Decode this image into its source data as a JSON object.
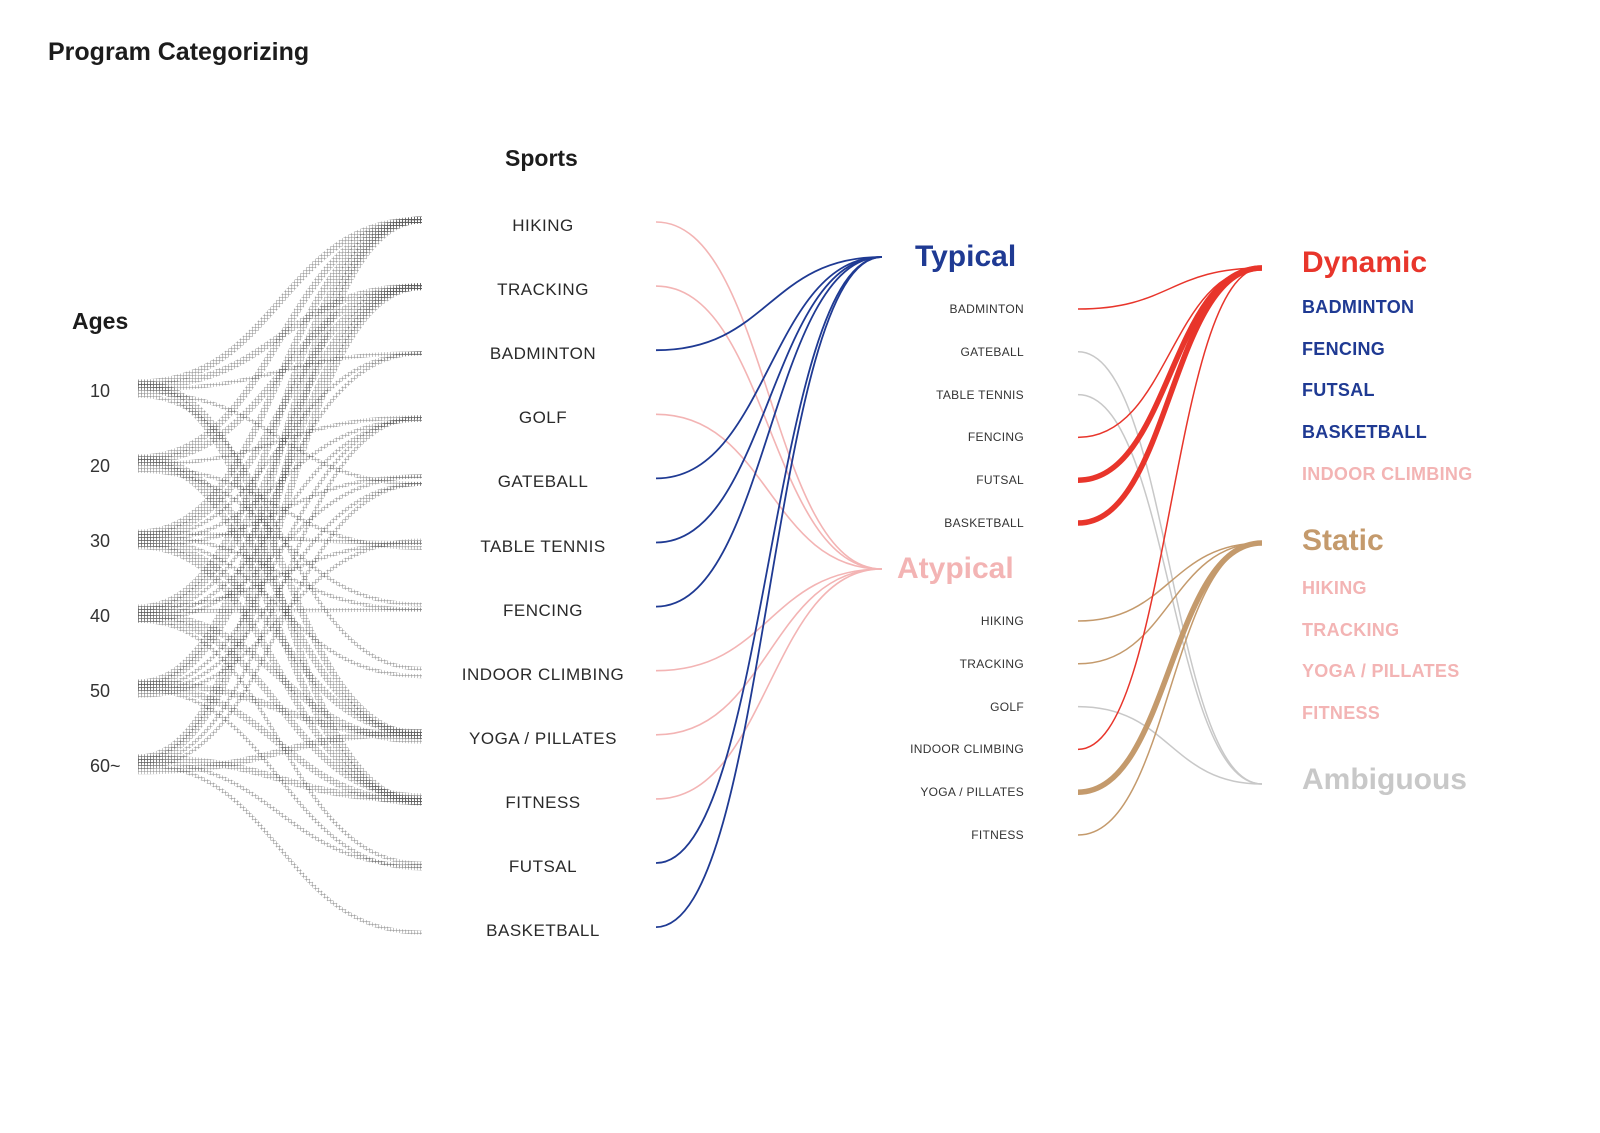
{
  "title": "Program Categorizing",
  "ages": {
    "heading": "Ages",
    "labels": [
      "10",
      "20",
      "30",
      "40",
      "50",
      "60~"
    ]
  },
  "sports": {
    "heading": "Sports",
    "items": [
      "HIKING",
      "TRACKING",
      "BADMINTON",
      "GOLF",
      "GATEBALL",
      "TABLE TENNIS",
      "FENCING",
      "INDOOR CLIMBING",
      "YOGA / PILLATES",
      "FITNESS",
      "FUTSAL",
      "BASKETBALL"
    ]
  },
  "typicality": {
    "typical": {
      "label": "Typical",
      "color": "#1f3a93",
      "items": [
        "BADMINTON",
        "GATEBALL",
        "TABLE TENNIS",
        "FENCING",
        "FUTSAL",
        "BASKETBALL"
      ]
    },
    "atypical": {
      "label": "Atypical",
      "color": "#f3b4b4",
      "items": [
        "HIKING",
        "TRACKING",
        "GOLF",
        "INDOOR CLIMBING",
        "YOGA / PILLATES",
        "FITNESS"
      ]
    }
  },
  "activity": {
    "dynamic": {
      "label": "Dynamic",
      "color": "#e8352b",
      "items": [
        {
          "label": "BADMINTON",
          "group": "typical"
        },
        {
          "label": "FENCING",
          "group": "typical"
        },
        {
          "label": "FUTSAL",
          "group": "typical"
        },
        {
          "label": "BASKETBALL",
          "group": "typical"
        },
        {
          "label": "INDOOR CLIMBING",
          "group": "atypical"
        }
      ]
    },
    "static": {
      "label": "Static",
      "color": "#c49a6c",
      "items": [
        {
          "label": "HIKING",
          "group": "atypical"
        },
        {
          "label": "TRACKING",
          "group": "atypical"
        },
        {
          "label": "YOGA / PILLATES",
          "group": "atypical"
        },
        {
          "label": "FITNESS",
          "group": "atypical"
        }
      ]
    },
    "ambiguous": {
      "label": "Ambiguous",
      "color": "#c8c8c8"
    }
  },
  "flows": {
    "sport_to_type": [
      {
        "from": "HIKING",
        "to": "atypical"
      },
      {
        "from": "TRACKING",
        "to": "atypical"
      },
      {
        "from": "BADMINTON",
        "to": "typical"
      },
      {
        "from": "GOLF",
        "to": "atypical"
      },
      {
        "from": "GATEBALL",
        "to": "typical"
      },
      {
        "from": "TABLE TENNIS",
        "to": "typical"
      },
      {
        "from": "FENCING",
        "to": "typical"
      },
      {
        "from": "INDOOR CLIMBING",
        "to": "atypical"
      },
      {
        "from": "YOGA / PILLATES",
        "to": "atypical"
      },
      {
        "from": "FITNESS",
        "to": "atypical"
      },
      {
        "from": "FUTSAL",
        "to": "typical"
      },
      {
        "from": "BASKETBALL",
        "to": "typical"
      }
    ],
    "type_to_activity": [
      {
        "from": "BADMINTON",
        "to": "dynamic",
        "weight": 1
      },
      {
        "from": "GATEBALL",
        "to": "ambiguous",
        "weight": 1
      },
      {
        "from": "TABLE TENNIS",
        "to": "ambiguous",
        "weight": 1
      },
      {
        "from": "FENCING",
        "to": "dynamic",
        "weight": 1
      },
      {
        "from": "FUTSAL",
        "to": "dynamic",
        "weight": 3
      },
      {
        "from": "BASKETBALL",
        "to": "dynamic",
        "weight": 3
      },
      {
        "from": "HIKING",
        "to": "static",
        "weight": 1
      },
      {
        "from": "TRACKING",
        "to": "static",
        "weight": 1
      },
      {
        "from": "GOLF",
        "to": "ambiguous",
        "weight": 1
      },
      {
        "from": "INDOOR CLIMBING",
        "to": "dynamic",
        "weight": 1
      },
      {
        "from": "YOGA / PILLATES",
        "to": "static",
        "weight": 3
      },
      {
        "from": "FITNESS",
        "to": "static",
        "weight": 1
      }
    ]
  }
}
